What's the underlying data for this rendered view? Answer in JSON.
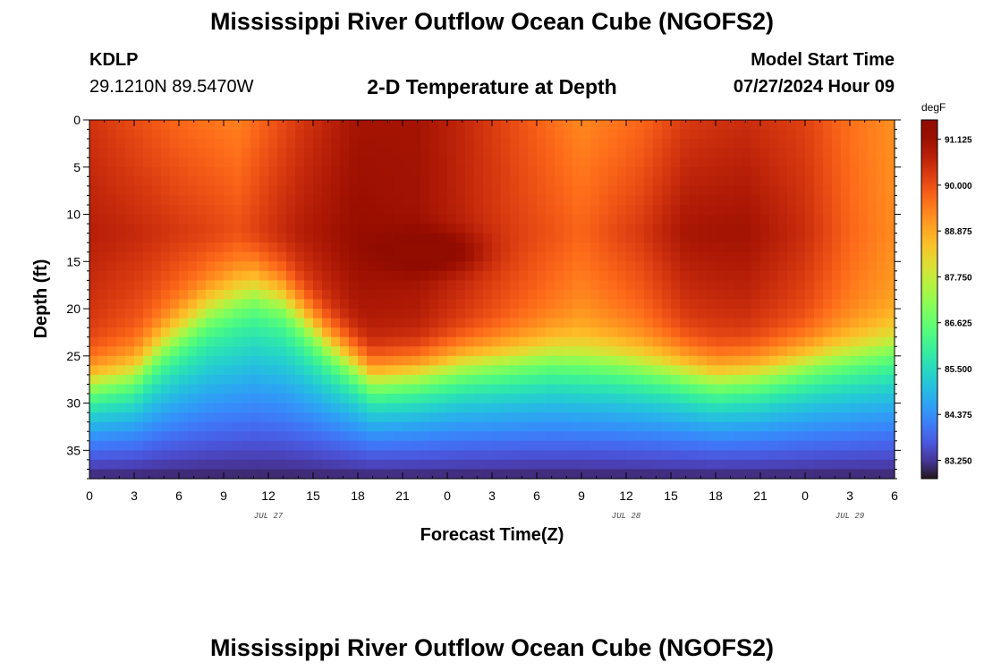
{
  "header": {
    "title": "Mississippi River Outflow Ocean Cube (NGOFS2)",
    "station_id": "KDLP",
    "station_coords": "29.1210N  89.5470W",
    "subtitle": "2-D Temperature at Depth",
    "model_start_label": "Model Start Time",
    "model_start_value": "07/27/2024 Hour 09"
  },
  "footer": {
    "title": "Mississippi River Outflow Ocean Cube (NGOFS2)"
  },
  "chart_data": {
    "type": "heatmap",
    "title": "2-D Temperature at Depth",
    "xlabel": "Forecast Time(Z)",
    "ylabel": "Depth (ft)",
    "x_tick_labels": [
      "0",
      "3",
      "6",
      "9",
      "12",
      "15",
      "18",
      "21",
      "0",
      "3",
      "6",
      "9",
      "12",
      "15",
      "18",
      "21",
      "0",
      "3",
      "6"
    ],
    "x_range_hours": [
      0,
      54
    ],
    "date_labels": [
      {
        "hour": 12,
        "text": "JUL 27"
      },
      {
        "hour": 36,
        "text": "JUL 28"
      },
      {
        "hour": 51,
        "text": "JUL 29"
      }
    ],
    "y_ticks": [
      0,
      5,
      10,
      15,
      20,
      25,
      30,
      35
    ],
    "y_range": [
      0,
      38
    ],
    "y_inverted": true,
    "colorbar": {
      "unit": "degF",
      "ticks": [
        83.25,
        84.375,
        85.5,
        86.625,
        87.75,
        88.875,
        90.0,
        91.125
      ],
      "tick_labels": [
        "83.250",
        "84.375",
        "85.500",
        "86.625",
        "87.750",
        "88.875",
        "90.000",
        "91.125"
      ],
      "range": [
        82.8,
        91.6
      ],
      "colormap": "turbo"
    },
    "field_description": {
      "thermocline_depth_ft": [
        {
          "hour": 0,
          "depth": 27
        },
        {
          "hour": 3,
          "depth": 26
        },
        {
          "hour": 5,
          "depth": 23
        },
        {
          "hour": 8,
          "depth": 19.5
        },
        {
          "hour": 11,
          "depth": 17.5
        },
        {
          "hour": 13,
          "depth": 18.5
        },
        {
          "hour": 16,
          "depth": 23
        },
        {
          "hour": 19,
          "depth": 26.5
        },
        {
          "hour": 22,
          "depth": 26
        },
        {
          "hour": 25,
          "depth": 25
        },
        {
          "hour": 28,
          "depth": 24.5
        },
        {
          "hour": 31,
          "depth": 24
        },
        {
          "hour": 35,
          "depth": 24.5
        },
        {
          "hour": 39,
          "depth": 25.5
        },
        {
          "hour": 42,
          "depth": 26.5
        },
        {
          "hour": 45,
          "depth": 26
        },
        {
          "hour": 49,
          "depth": 24.5
        },
        {
          "hour": 54,
          "depth": 23
        }
      ],
      "surface_temp_degF": [
        {
          "hour": 0,
          "value": 90.4
        },
        {
          "hour": 6,
          "value": 89.7
        },
        {
          "hour": 10,
          "value": 89.4
        },
        {
          "hour": 14,
          "value": 90.3
        },
        {
          "hour": 18,
          "value": 91.0
        },
        {
          "hour": 22,
          "value": 91.0
        },
        {
          "hour": 25,
          "value": 90.6
        },
        {
          "hour": 30,
          "value": 89.8
        },
        {
          "hour": 33,
          "value": 89.3
        },
        {
          "hour": 37,
          "value": 89.7
        },
        {
          "hour": 40,
          "value": 90.3
        },
        {
          "hour": 44,
          "value": 90.5
        },
        {
          "hour": 48,
          "value": 90.2
        },
        {
          "hour": 51,
          "value": 89.6
        },
        {
          "hour": 54,
          "value": 89.2
        }
      ],
      "bottom_temp_degF": 83.0,
      "warm_core": {
        "hour": 23,
        "depth": 14,
        "value": 91.6
      }
    }
  }
}
